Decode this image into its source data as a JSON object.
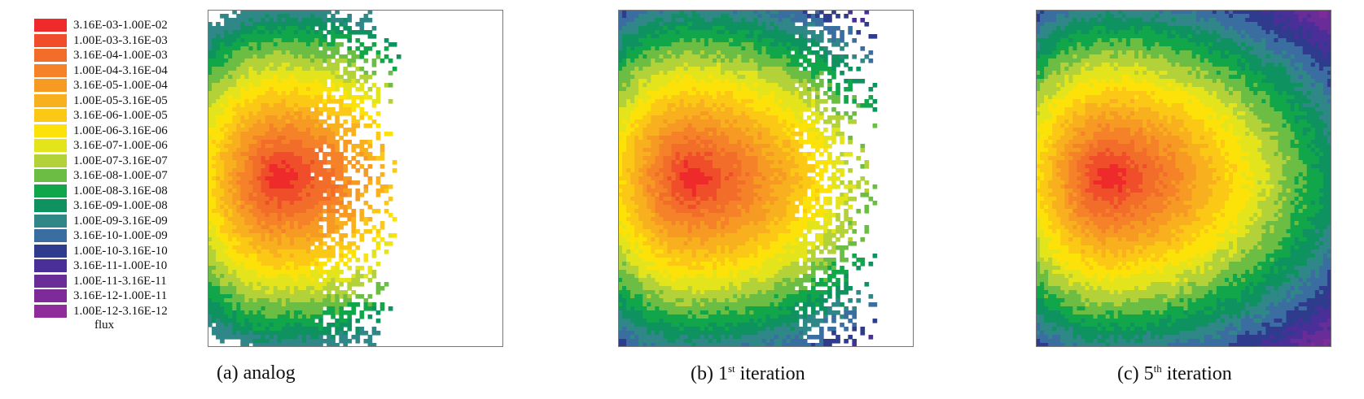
{
  "chart_data": {
    "type": "heatmap",
    "legend": {
      "title": "flux",
      "bins": [
        {
          "label": "3.16E-03-1.00E-02",
          "color": "#ee2a2a"
        },
        {
          "label": "1.00E-03-3.16E-03",
          "color": "#f04e2b"
        },
        {
          "label": "3.16E-04-1.00E-03",
          "color": "#f26c2a"
        },
        {
          "label": "1.00E-04-3.16E-04",
          "color": "#f58228"
        },
        {
          "label": "3.16E-05-1.00E-04",
          "color": "#f79a24"
        },
        {
          "label": "1.00E-05-3.16E-05",
          "color": "#f9b01e"
        },
        {
          "label": "3.16E-06-1.00E-05",
          "color": "#fbc816"
        },
        {
          "label": "1.00E-06-3.16E-06",
          "color": "#fde20a"
        },
        {
          "label": "3.16E-07-1.00E-06",
          "color": "#e4e41c"
        },
        {
          "label": "1.00E-07-3.16E-07",
          "color": "#b3d23a"
        },
        {
          "label": "3.16E-08-1.00E-07",
          "color": "#6cbd44"
        },
        {
          "label": "1.00E-08-3.16E-08",
          "color": "#12a64b"
        },
        {
          "label": "3.16E-09-1.00E-08",
          "color": "#0e9360"
        },
        {
          "label": "1.00E-09-3.16E-09",
          "color": "#2f8787"
        },
        {
          "label": "3.16E-10-1.00E-09",
          "color": "#3a6ea0"
        },
        {
          "label": "1.00E-10-3.16E-10",
          "color": "#2f3c8e"
        },
        {
          "label": "3.16E-11-1.00E-10",
          "color": "#4a2f98"
        },
        {
          "label": "1.00E-11-3.16E-11",
          "color": "#6a2d97"
        },
        {
          "label": "3.16E-12-1.00E-11",
          "color": "#7e2a98"
        },
        {
          "label": "1.00E-12-3.16E-12",
          "color": "#902b9c"
        }
      ]
    },
    "panels": [
      {
        "id": "a",
        "caption": "(a) analog",
        "max_bin_reached": 13,
        "cutoff": 0.62,
        "sparse_tail": true
      },
      {
        "id": "b",
        "caption_prefix": "(b) 1",
        "caption_sup": "st",
        "caption_suffix": " iteration",
        "max_bin_reached": 17,
        "cutoff": 1.05,
        "sparse_tail": true
      },
      {
        "id": "c",
        "caption_prefix": "(c) 5",
        "caption_sup": "th",
        "caption_suffix": " iteration",
        "max_bin_reached": 19,
        "cutoff": 2.0,
        "sparse_tail": false
      }
    ]
  }
}
